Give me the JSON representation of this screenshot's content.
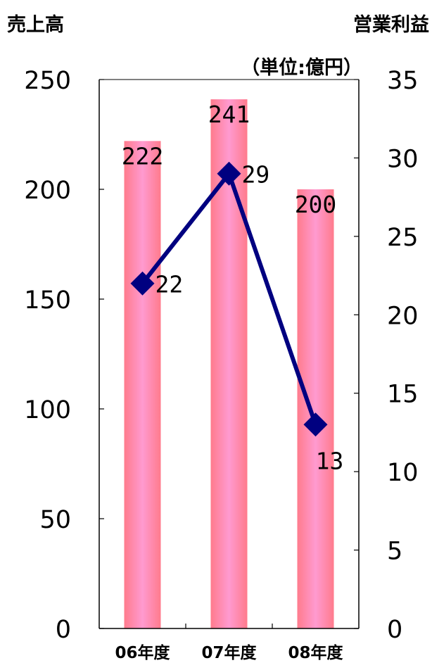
{
  "chart_data": {
    "type": "bar",
    "left_title": "売上高",
    "right_title": "営業利益",
    "unit": "（単位:億円）",
    "categories": [
      "06年度",
      "07年度",
      "08年度"
    ],
    "series": [
      {
        "name": "売上高",
        "type": "bar",
        "axis": "left",
        "values": [
          222,
          241,
          200
        ],
        "labels": [
          "222",
          "241",
          "200"
        ]
      },
      {
        "name": "営業利益",
        "type": "line",
        "axis": "right",
        "values": [
          22,
          29,
          13
        ],
        "labels": [
          "22",
          "29",
          "13"
        ]
      }
    ],
    "left_axis": {
      "ylim": [
        0,
        250
      ],
      "ticks": [
        "0",
        "50",
        "100",
        "150",
        "200",
        "250"
      ]
    },
    "right_axis": {
      "ylim": [
        0,
        35
      ],
      "ticks": [
        "0",
        "5",
        "10",
        "15",
        "20",
        "25",
        "30",
        "35"
      ]
    },
    "grid": false,
    "colors": {
      "bar_center": "#ff9ad0",
      "bar_edge": "#ff7b8c",
      "line": "#000080",
      "axis": "#000000"
    }
  }
}
